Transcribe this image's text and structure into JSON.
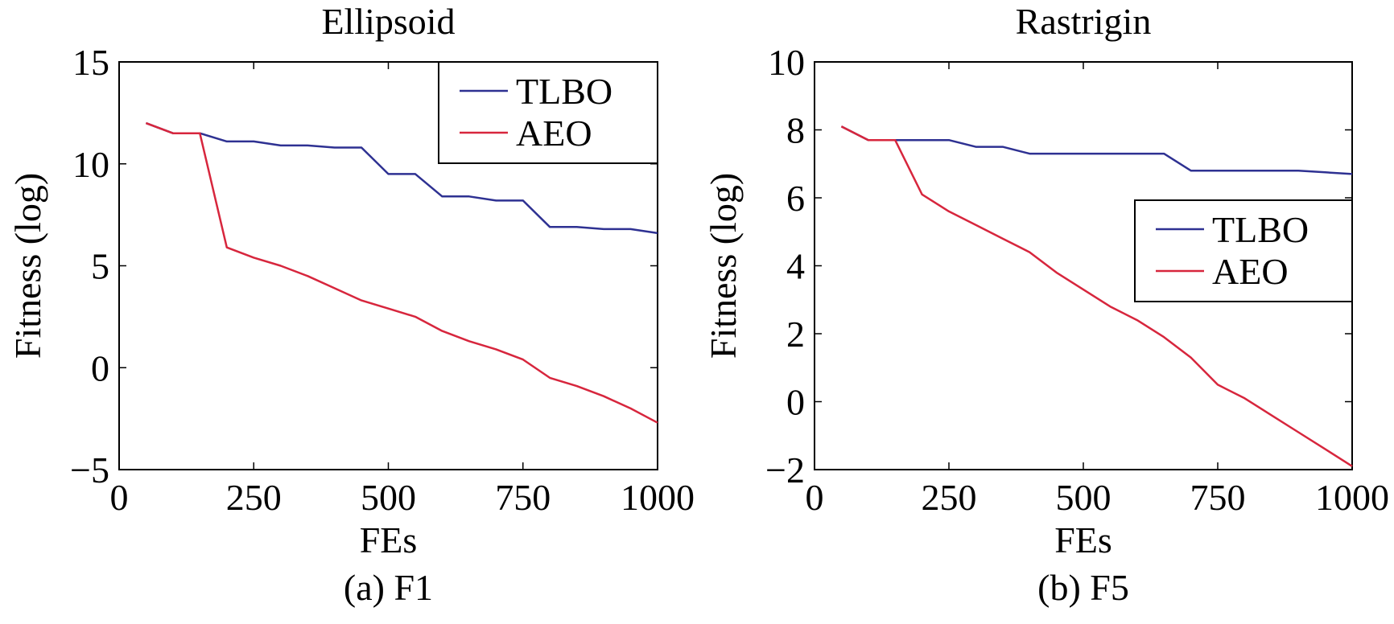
{
  "chart_data": [
    {
      "type": "line",
      "title": "Ellipsoid",
      "caption": "(a) F1",
      "xlabel": "FEs",
      "ylabel": "Fitness (log)",
      "xlim": [
        0,
        1000
      ],
      "ylim": [
        -5,
        15
      ],
      "xticks": [
        0,
        250,
        500,
        750,
        1000
      ],
      "xtick_labels": [
        "0",
        "250",
        "500",
        "750",
        "1000"
      ],
      "yticks": [
        -5,
        0,
        5,
        10,
        15
      ],
      "ytick_labels": [
        "−5",
        "0",
        "5",
        "10",
        "15"
      ],
      "legend_position": "top-right",
      "grid": false,
      "series": [
        {
          "name": "TLBO",
          "color": "#2e3192",
          "x": [
            50,
            100,
            150,
            200,
            250,
            300,
            350,
            400,
            450,
            500,
            550,
            600,
            650,
            700,
            750,
            800,
            850,
            900,
            950,
            1000
          ],
          "y": [
            12.0,
            11.5,
            11.5,
            11.1,
            11.1,
            10.9,
            10.9,
            10.8,
            10.8,
            9.5,
            9.5,
            8.4,
            8.4,
            8.2,
            8.2,
            6.9,
            6.9,
            6.8,
            6.8,
            6.6
          ]
        },
        {
          "name": "AEO",
          "color": "#d7263d",
          "x": [
            50,
            100,
            150,
            200,
            250,
            300,
            350,
            400,
            450,
            500,
            550,
            600,
            650,
            700,
            750,
            800,
            850,
            900,
            950,
            1000
          ],
          "y": [
            12.0,
            11.5,
            11.5,
            5.9,
            5.4,
            5.0,
            4.5,
            3.9,
            3.3,
            2.9,
            2.5,
            1.8,
            1.3,
            0.9,
            0.4,
            -0.5,
            -0.9,
            -1.4,
            -2.0,
            -2.7
          ]
        }
      ]
    },
    {
      "type": "line",
      "title": "Rastrigin",
      "caption": "(b) F5",
      "xlabel": "FEs",
      "ylabel": "Fitness (log)",
      "xlim": [
        0,
        1000
      ],
      "ylim": [
        -2,
        10
      ],
      "xticks": [
        0,
        250,
        500,
        750,
        1000
      ],
      "xtick_labels": [
        "0",
        "250",
        "500",
        "750",
        "1000"
      ],
      "yticks": [
        -2,
        0,
        2,
        4,
        6,
        8,
        10
      ],
      "ytick_labels": [
        "−2",
        "0",
        "2",
        "4",
        "6",
        "8",
        "10"
      ],
      "legend_position": "center-right",
      "grid": false,
      "series": [
        {
          "name": "TLBO",
          "color": "#2e3192",
          "x": [
            50,
            100,
            150,
            200,
            250,
            300,
            350,
            400,
            450,
            500,
            550,
            600,
            650,
            700,
            750,
            800,
            850,
            900,
            950,
            1000
          ],
          "y": [
            8.1,
            7.7,
            7.7,
            7.7,
            7.7,
            7.5,
            7.5,
            7.3,
            7.3,
            7.3,
            7.3,
            7.3,
            7.3,
            6.8,
            6.8,
            6.8,
            6.8,
            6.8,
            6.75,
            6.7
          ]
        },
        {
          "name": "AEO",
          "color": "#d7263d",
          "x": [
            50,
            100,
            150,
            200,
            250,
            300,
            350,
            400,
            450,
            500,
            550,
            600,
            650,
            700,
            750,
            800,
            850,
            900,
            950,
            1000
          ],
          "y": [
            8.1,
            7.7,
            7.7,
            6.1,
            5.6,
            5.2,
            4.8,
            4.4,
            3.8,
            3.3,
            2.8,
            2.4,
            1.9,
            1.3,
            0.5,
            0.1,
            -0.4,
            -0.9,
            -1.4,
            -1.9
          ]
        }
      ]
    }
  ]
}
